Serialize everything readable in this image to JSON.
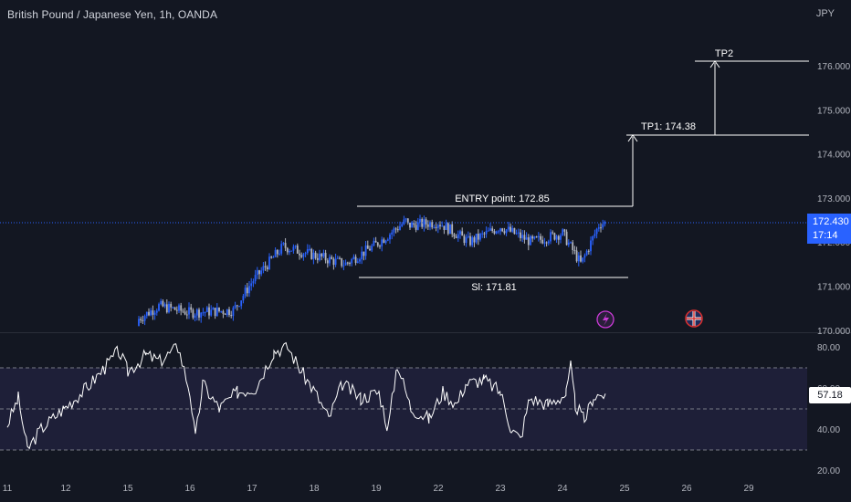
{
  "header": {
    "title": "British Pound / Japanese Yen, 1h, OANDA",
    "currency": "JPY"
  },
  "price_badge": {
    "price": "172.430",
    "countdown": "17:14"
  },
  "rsi_badge": {
    "value": "57.18"
  },
  "annotations": {
    "entry": "ENTRY point: 172.85",
    "stop": "Sl: 171.81",
    "tp1": "TP1: 174.38",
    "tp2": "TP2"
  },
  "icons": {
    "event_1": "lightning-icon",
    "event_2": "uk-flag-icon"
  },
  "colors": {
    "up_candle": "#2962ff",
    "down_candle": "#b2b5be",
    "background": "#131722",
    "rsi_line": "#ffffff",
    "rsi_band": "#1e1f38"
  },
  "chart_data": [
    {
      "type": "candlestick",
      "title": "British Pound / Japanese Yen, 1h, OANDA",
      "y_axis": {
        "ticks": [
          "176.000",
          "175.000",
          "174.000",
          "173.000",
          "172.000",
          "171.000",
          "170.000"
        ],
        "range": [
          169.9,
          176.7
        ]
      },
      "x_axis": {
        "ticks": [
          "11",
          "12",
          "15",
          "16",
          "17",
          "18",
          "19",
          "22",
          "23",
          "24",
          "25",
          "26",
          "29"
        ]
      },
      "levels": {
        "entry": 172.85,
        "stop_loss": 171.81,
        "tp1": 174.38,
        "tp2": 176.02,
        "last": 172.43
      },
      "approx_close_path": [
        {
          "x": "15",
          "close": 170.1
        },
        {
          "x": "15.5",
          "close": 170.55
        },
        {
          "x": "16",
          "close": 170.4
        },
        {
          "x": "16.7",
          "close": 170.45
        },
        {
          "x": "17",
          "close": 171.1
        },
        {
          "x": "17.5",
          "close": 171.9
        },
        {
          "x": "18",
          "close": 171.7
        },
        {
          "x": "18.5",
          "close": 171.5
        },
        {
          "x": "19",
          "close": 171.95
        },
        {
          "x": "19.5",
          "close": 172.5
        },
        {
          "x": "20",
          "close": 171.7
        },
        {
          "x": "22",
          "close": 172.45
        },
        {
          "x": "22.5",
          "close": 172.0
        },
        {
          "x": "23",
          "close": 172.35
        },
        {
          "x": "23.5",
          "close": 172.0
        },
        {
          "x": "24",
          "close": 172.2
        },
        {
          "x": "24.3",
          "close": 171.5
        },
        {
          "x": "24.6",
          "close": 172.43
        }
      ]
    },
    {
      "type": "line",
      "name": "RSI",
      "y_axis": {
        "ticks": [
          "80.00",
          "60.00",
          "40.00",
          "20.00"
        ],
        "range": [
          20,
          80
        ]
      },
      "bands": [
        70,
        50,
        30
      ],
      "last": 57.18
    }
  ]
}
